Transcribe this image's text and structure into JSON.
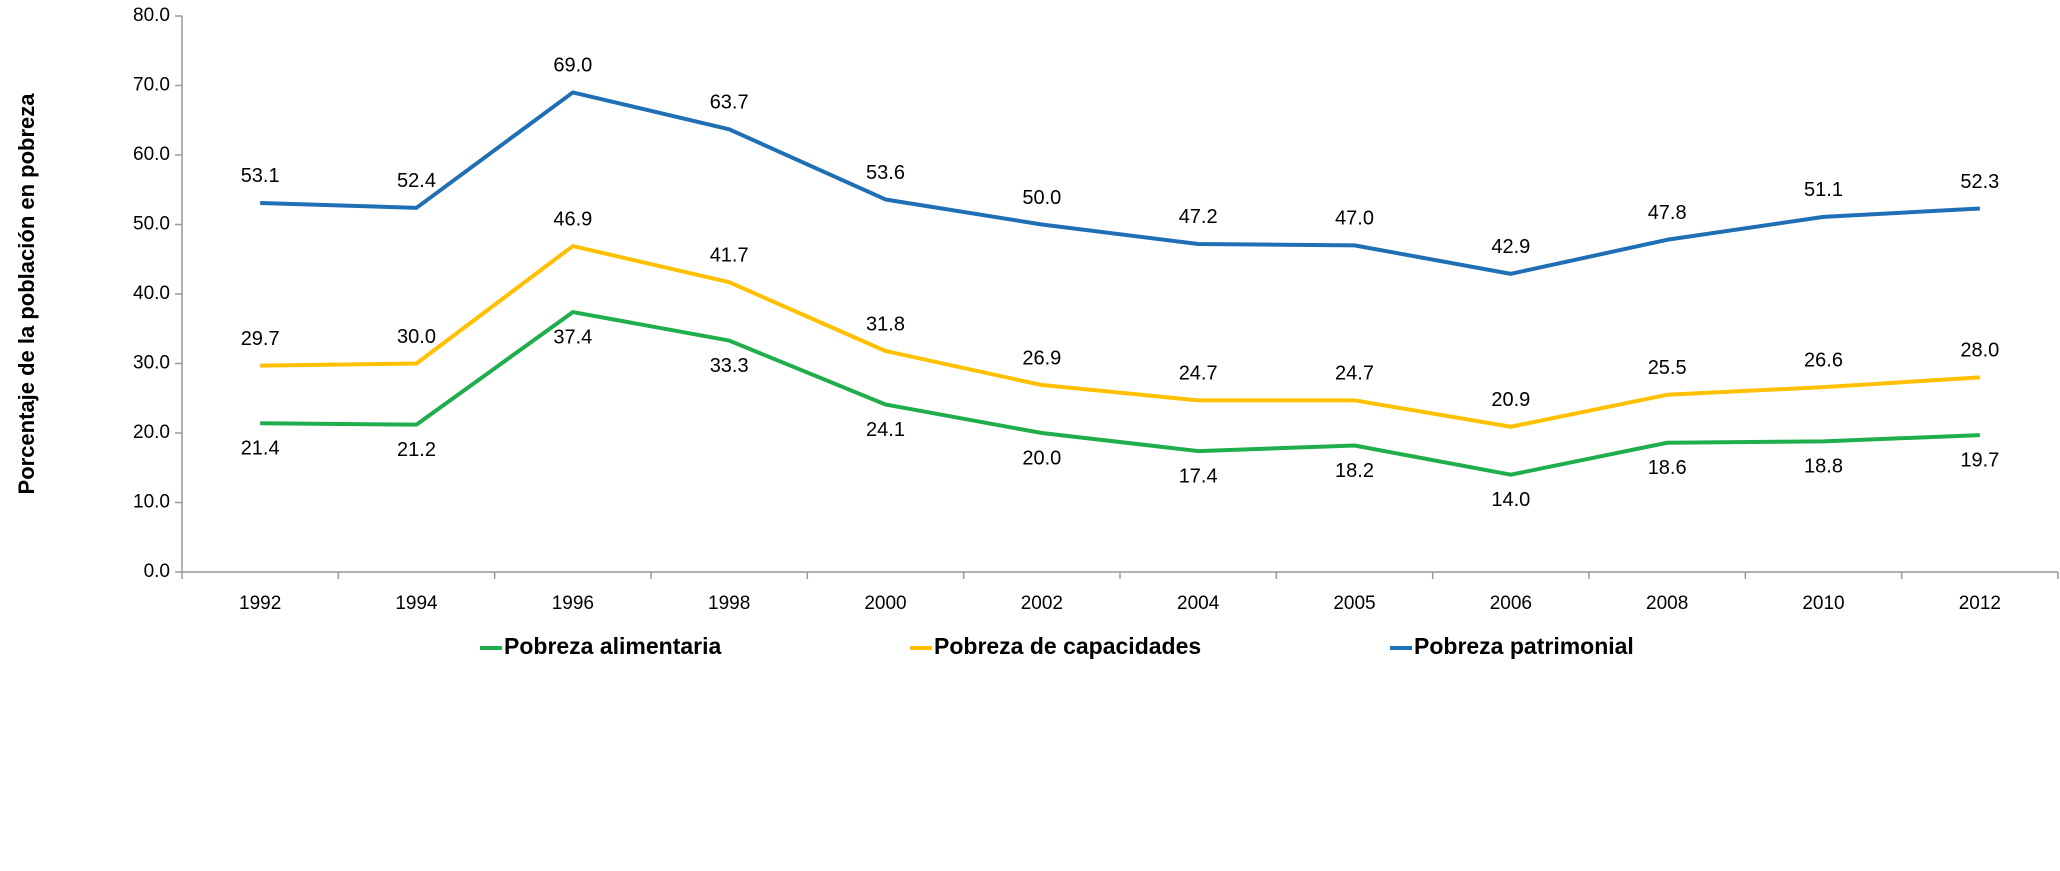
{
  "chart_data": {
    "type": "line",
    "y_label": "Porcentaje de la población en pobreza",
    "categories": [
      "1992",
      "1994",
      "1996",
      "1998",
      "2000",
      "2002",
      "2004",
      "2005",
      "2006",
      "2008",
      "2010",
      "2012"
    ],
    "series": [
      {
        "name": "Pobreza alimentaria",
        "color": "#1fae4b",
        "label_position": "below",
        "values": [
          21.4,
          21.2,
          37.4,
          33.3,
          24.1,
          20.0,
          17.4,
          18.2,
          14.0,
          18.6,
          18.8,
          19.7
        ],
        "value_labels": [
          "21.4",
          "21.2",
          "37.4",
          "33.3",
          "24.1",
          "20.0",
          "17.4",
          "18.2",
          "14.0",
          "18.6",
          "18.8",
          "19.7"
        ]
      },
      {
        "name": "Pobreza de capacidades",
        "color": "#ffc000",
        "label_position": "above",
        "values": [
          29.7,
          30.0,
          46.9,
          41.7,
          31.8,
          26.9,
          24.7,
          24.7,
          20.9,
          25.5,
          26.6,
          28.0
        ],
        "value_labels": [
          "29.7",
          "30.0",
          "46.9",
          "41.7",
          "31.8",
          "26.9",
          "24.7",
          "24.7",
          "20.9",
          "25.5",
          "26.6",
          "28.0"
        ]
      },
      {
        "name": "Pobreza patrimonial",
        "color": "#1f6fb4",
        "label_position": "above",
        "values": [
          53.1,
          52.4,
          69.0,
          63.7,
          53.6,
          50.0,
          47.2,
          47.0,
          42.9,
          47.8,
          51.1,
          52.3
        ],
        "value_labels": [
          "53.1",
          "52.4",
          "69.0",
          "63.7",
          "53.6",
          "50.0",
          "47.2",
          "47.0",
          "42.9",
          "47.8",
          "51.1",
          "52.3"
        ]
      }
    ],
    "ylim": [
      0,
      80
    ],
    "yticks": [
      {
        "value": 0,
        "label": "0.0"
      },
      {
        "value": 10,
        "label": "10.0"
      },
      {
        "value": 20,
        "label": "20.0"
      },
      {
        "value": 30,
        "label": "30.0"
      },
      {
        "value": 40,
        "label": "40.0"
      },
      {
        "value": 50,
        "label": "50.0"
      },
      {
        "value": 60,
        "label": "60.0"
      },
      {
        "value": 70,
        "label": "70.0"
      },
      {
        "value": 80,
        "label": "80.0"
      }
    ],
    "legend": "bottom"
  }
}
